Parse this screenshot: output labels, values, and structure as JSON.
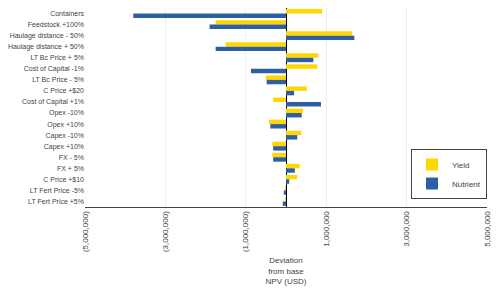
{
  "chart_data": {
    "type": "bar",
    "orientation": "horizontal",
    "categories": [
      "Containers",
      "Feedstock +100%",
      "Haulage distance - 50%",
      "Haulage distance + 50%",
      "LT Bc Price + 5%",
      "Cost of Capital -1%",
      "LT Bc Price - 5%",
      "C Price +$20",
      "Cost of Capital +1%",
      "Opex -10%",
      "Opex +10%",
      "Capex -10%",
      "Capex +10%",
      "FX - 5%",
      "FX + 5%",
      "C Price +$10",
      "LT Fert Price -5%",
      "LT Fert Price +5%"
    ],
    "series": [
      {
        "name": "Yield",
        "color": "#FFD700",
        "values": [
          900000,
          -1750000,
          1650000,
          -1500000,
          800000,
          780000,
          -500000,
          520000,
          -320000,
          420000,
          -420000,
          380000,
          -340000,
          -340000,
          340000,
          280000,
          -25000,
          -25000
        ]
      },
      {
        "name": "Nutrient",
        "color": "#2E5FA3",
        "values": [
          -3800000,
          -1900000,
          1700000,
          -1750000,
          680000,
          -870000,
          -480000,
          200000,
          870000,
          390000,
          -390000,
          280000,
          -320000,
          -320000,
          220000,
          80000,
          -55000,
          -80000
        ]
      }
    ],
    "x_label": "Deviation\nfrom base\nNPV (USD)",
    "xlim": [
      -5000000,
      5000000
    ],
    "xticks": [
      {
        "value": -5000000,
        "label": "(5,000,000)"
      },
      {
        "value": -3000000,
        "label": "(3,000,000)"
      },
      {
        "value": -1000000,
        "label": "(1,000,000)"
      },
      {
        "value": 1000000,
        "label": "1,000,000"
      },
      {
        "value": 3000000,
        "label": "3,000,000"
      },
      {
        "value": 5000000,
        "label": "5,000,000"
      }
    ],
    "grid": true,
    "legend": "lower right"
  }
}
